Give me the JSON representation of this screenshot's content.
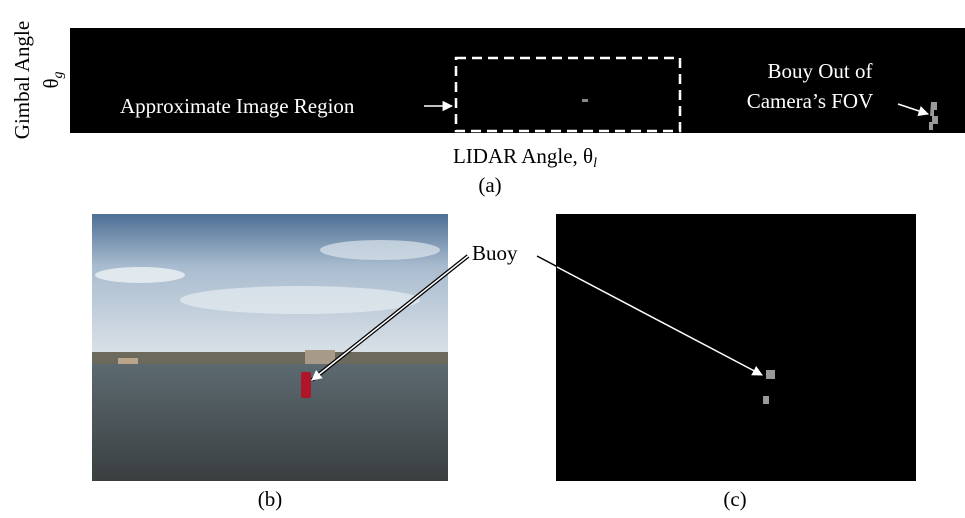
{
  "panel_a": {
    "y_axis_label": "Gimbal Angle",
    "y_axis_symbol": {
      "symbol": "θ",
      "subscript": "g"
    },
    "x_axis_label": {
      "text": "LIDAR Angle, θ",
      "subscript": "l"
    },
    "region_annotation": "Approximate Image Region",
    "out_of_view_annotation": [
      "Bouy Out of",
      "Camera’s FOV"
    ],
    "caption": "(a)"
  },
  "panel_b": {
    "caption": "(b)"
  },
  "panel_c": {
    "caption": "(c)"
  },
  "buoy_annotation": "Buoy"
}
